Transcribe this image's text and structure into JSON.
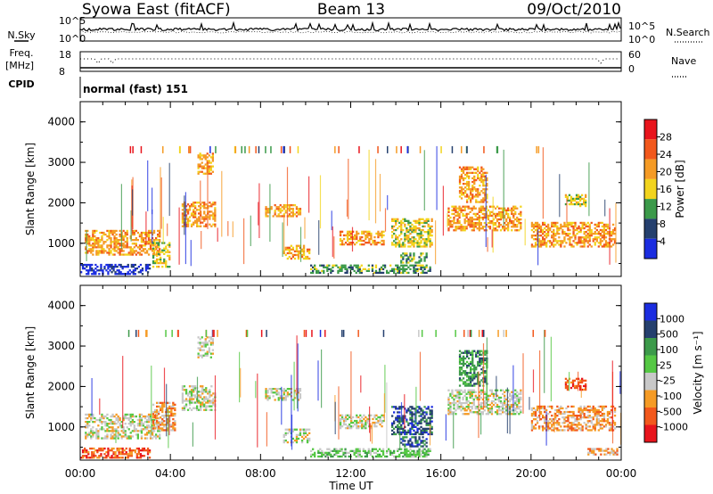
{
  "header": {
    "station": "Syowa East (fitACF)",
    "beam": "Beam 13",
    "date": "09/Oct/2010"
  },
  "status_panels": {
    "nsky_label": "N.Sky",
    "nsky_ticks": [
      "10^5",
      "10^0"
    ],
    "nsearch_label": "N.Search",
    "nsearch_ticks": [
      "10^5",
      "10^0"
    ],
    "freq_label": "Freq.",
    "freq_unit": "[MHz]",
    "freq_ticks": [
      "18",
      "8"
    ],
    "nave_label": "Nave",
    "nave_ticks": [
      "60",
      "0"
    ],
    "cpid_label": "CPID",
    "cpid_value": "normal (fast) 151"
  },
  "chart_data": [
    {
      "type": "heatmap",
      "name": "Power",
      "ylabel": "Slant Range [km]",
      "yticks": [
        "1000",
        "2000",
        "3000",
        "4000"
      ],
      "ylim": [
        180,
        4500
      ],
      "xlim_hours": [
        0,
        24
      ],
      "colorbar": {
        "label": "Power [dB]",
        "ticks": [
          "28",
          "24",
          "20",
          "16",
          "12",
          "8",
          "4"
        ],
        "colors": [
          "#e8141c",
          "#f2581c",
          "#f59b25",
          "#f2d41e",
          "#3c9a4a",
          "#25406e",
          "#1b2de0"
        ]
      },
      "echo_regions": [
        {
          "t0": 0.0,
          "t1": 3.1,
          "r0": 220,
          "r1": 480,
          "level": 6
        },
        {
          "t0": 0.2,
          "t1": 3.5,
          "r0": 700,
          "r1": 1300,
          "level": 2
        },
        {
          "t0": 3.2,
          "t1": 4.0,
          "r0": 400,
          "r1": 1000,
          "level": 3
        },
        {
          "t0": 4.5,
          "t1": 6.0,
          "r0": 1400,
          "r1": 2000,
          "level": 2
        },
        {
          "t0": 5.2,
          "t1": 5.9,
          "r0": 2700,
          "r1": 3200,
          "level": 2
        },
        {
          "t0": 8.2,
          "t1": 9.8,
          "r0": 1650,
          "r1": 1950,
          "level": 2
        },
        {
          "t0": 9.0,
          "t1": 10.2,
          "r0": 600,
          "r1": 950,
          "level": 2
        },
        {
          "t0": 10.2,
          "t1": 15.5,
          "r0": 250,
          "r1": 450,
          "level": 4
        },
        {
          "t0": 11.5,
          "t1": 13.5,
          "r0": 950,
          "r1": 1300,
          "level": 2
        },
        {
          "t0": 13.8,
          "t1": 15.6,
          "r0": 900,
          "r1": 1600,
          "level": 3
        },
        {
          "t0": 14.2,
          "t1": 15.4,
          "r0": 500,
          "r1": 750,
          "level": 4
        },
        {
          "t0": 16.3,
          "t1": 19.5,
          "r0": 1300,
          "r1": 1900,
          "level": 2
        },
        {
          "t0": 16.8,
          "t1": 18.0,
          "r0": 2000,
          "r1": 2900,
          "level": 2
        },
        {
          "t0": 20.0,
          "t1": 23.7,
          "r0": 900,
          "r1": 1500,
          "level": 2
        },
        {
          "t0": 21.5,
          "t1": 22.4,
          "r0": 1900,
          "r1": 2200,
          "level": 3
        }
      ]
    },
    {
      "type": "heatmap",
      "name": "Velocity",
      "ylabel": "Slant Range [km]",
      "yticks": [
        "1000",
        "2000",
        "3000",
        "4000"
      ],
      "xticks": [
        "00:00",
        "04:00",
        "08:00",
        "12:00",
        "16:00",
        "20:00",
        "00:00"
      ],
      "xlabel": "Time UT",
      "ylim": [
        180,
        4500
      ],
      "xlim_hours": [
        0,
        24
      ],
      "colorbar": {
        "label": "Velocity [m s⁻¹]",
        "ticks": [
          "1000",
          "500",
          "100",
          "25",
          "-25",
          "-100",
          "-500",
          "-1000"
        ],
        "colors": [
          "#1b2de0",
          "#25406e",
          "#3c9a4a",
          "#55c844",
          "#c8c8c8",
          "#f59b25",
          "#f2581c",
          "#e8141c"
        ]
      },
      "echo_regions": [
        {
          "t0": 0.0,
          "t1": 3.1,
          "r0": 220,
          "r1": 480,
          "level": 6
        },
        {
          "t0": 0.2,
          "t1": 3.5,
          "r0": 700,
          "r1": 1300,
          "level": 4
        },
        {
          "t0": 3.2,
          "t1": 4.2,
          "r0": 900,
          "r1": 1600,
          "level": 5
        },
        {
          "t0": 4.5,
          "t1": 6.0,
          "r0": 1400,
          "r1": 2000,
          "level": 4
        },
        {
          "t0": 5.2,
          "t1": 5.9,
          "r0": 2700,
          "r1": 3200,
          "level": 4
        },
        {
          "t0": 8.2,
          "t1": 9.8,
          "r0": 1650,
          "r1": 1950,
          "level": 4
        },
        {
          "t0": 9.0,
          "t1": 10.2,
          "r0": 600,
          "r1": 950,
          "level": 4
        },
        {
          "t0": 10.2,
          "t1": 15.5,
          "r0": 250,
          "r1": 450,
          "level": 3
        },
        {
          "t0": 11.5,
          "t1": 13.5,
          "r0": 950,
          "r1": 1300,
          "level": 4
        },
        {
          "t0": 13.8,
          "t1": 15.6,
          "r0": 800,
          "r1": 1500,
          "level": 1
        },
        {
          "t0": 14.2,
          "t1": 15.4,
          "r0": 500,
          "r1": 750,
          "level": 1
        },
        {
          "t0": 16.3,
          "t1": 19.5,
          "r0": 1300,
          "r1": 1900,
          "level": 4
        },
        {
          "t0": 16.8,
          "t1": 18.0,
          "r0": 2000,
          "r1": 2900,
          "level": 2
        },
        {
          "t0": 20.0,
          "t1": 23.7,
          "r0": 900,
          "r1": 1500,
          "level": 5
        },
        {
          "t0": 21.5,
          "t1": 22.4,
          "r0": 1900,
          "r1": 2200,
          "level": 6
        },
        {
          "t0": 22.5,
          "t1": 23.8,
          "r0": 300,
          "r1": 450,
          "level": 5
        }
      ]
    }
  ]
}
